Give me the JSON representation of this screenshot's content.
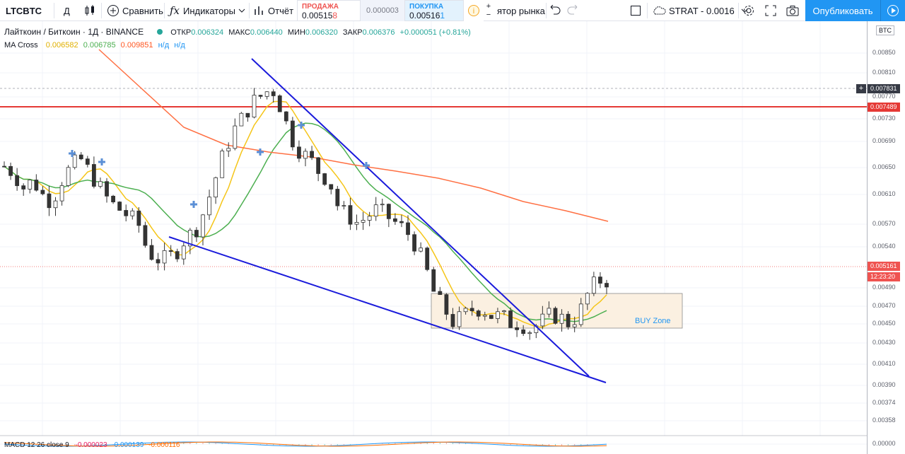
{
  "toolbar": {
    "symbol": "LTCBTC",
    "interval": "Д",
    "compare_label": "Сравнить",
    "indicators_label": "Индикаторы",
    "report_label": "Отчёт",
    "screener_label": "ятор рынка",
    "sell_label": "ПРОДАЖА",
    "sell_price": "0.00515",
    "sell_price_tail": "8",
    "spread": "0.000003",
    "buy_label": "ПОКУПКА",
    "buy_price": "0.00516",
    "buy_price_tail": "1",
    "strategy_label": "STRAT - 0.0016",
    "publish_label": "Опубликовать"
  },
  "legend": {
    "title": "Лайткоин / Биткоин · 1Д · BINANCE",
    "open_label": "ОТКР",
    "open": "0.006324",
    "high_label": "МАКС",
    "high": "0.006440",
    "low_label": "МИН",
    "low": "0.006320",
    "close_label": "ЗАКР",
    "close": "0.006376",
    "change": "+0.000051 (+0.81%)",
    "ma_name": "MA Cross",
    "ma_val1": "0.006582",
    "ma_val2": "0.006785",
    "ma_val3": "0.009851",
    "na1": "н/д",
    "na2": "н/д"
  },
  "price_axis": {
    "currency": "BTC",
    "ticks": [
      "0.00850",
      "0.00810",
      "0.00770",
      "0.00730",
      "0.00690",
      "0.00650",
      "0.00610",
      "0.00570",
      "0.00540",
      "0.00490",
      "0.00470",
      "0.00450",
      "0.00430",
      "0.00410",
      "0.00390",
      "0.00374",
      "0.00358",
      "0.00000"
    ],
    "crosshair_price": "0.007831",
    "resistance_price": "0.007489",
    "last_price": "0.005161",
    "countdown": "12:23:20"
  },
  "annotations": {
    "buy_zone_label": "BUY Zone"
  },
  "macd": {
    "name": "MACD 12 26 close 9",
    "v1": "-0.000023",
    "v2": "-0.000139",
    "v3": "-0.000116"
  },
  "colors": {
    "up": "#26a69a",
    "down": "#ef5350",
    "candle": "#333333",
    "ma_fast": "#f5c518",
    "ma_mid": "#4caf50",
    "ma_slow": "#ff7043",
    "trendline": "#1a1adb",
    "resistance": "#e53935",
    "accent": "#2196f3",
    "buy_zone_fill": "#fbf0e1",
    "buy_zone_text": "#2196f3"
  },
  "chart_data": {
    "type": "candlestick",
    "symbol": "LTCBTC",
    "interval": "1D",
    "exchange": "BINANCE",
    "ylim": [
      0.0,
      0.0088
    ],
    "close_trend": [
      0.0068,
      0.0067,
      0.0065,
      0.0066,
      0.0064,
      0.0063,
      0.0066,
      0.0068,
      0.0069,
      0.0067,
      0.0065,
      0.0063,
      0.0062,
      0.0061,
      0.006,
      0.0056,
      0.0055,
      0.0055,
      0.0056,
      0.0058,
      0.0059,
      0.0062,
      0.0066,
      0.007,
      0.0073,
      0.0075,
      0.0077,
      0.0078,
      0.0079,
      0.0076,
      0.0072,
      0.007,
      0.0069,
      0.0067,
      0.0066,
      0.0062,
      0.0061,
      0.006,
      0.0061,
      0.0062,
      0.0061,
      0.006,
      0.0059,
      0.0057,
      0.0054,
      0.005,
      0.0048,
      0.0046,
      0.0047,
      0.0048,
      0.0048,
      0.0047,
      0.0047,
      0.0046,
      0.0046,
      0.0045,
      0.0046,
      0.0047,
      0.0047,
      0.0046,
      0.0047,
      0.005,
      0.0052,
      0.0052
    ],
    "resistance": 0.007489,
    "last_price": 0.005161
  }
}
